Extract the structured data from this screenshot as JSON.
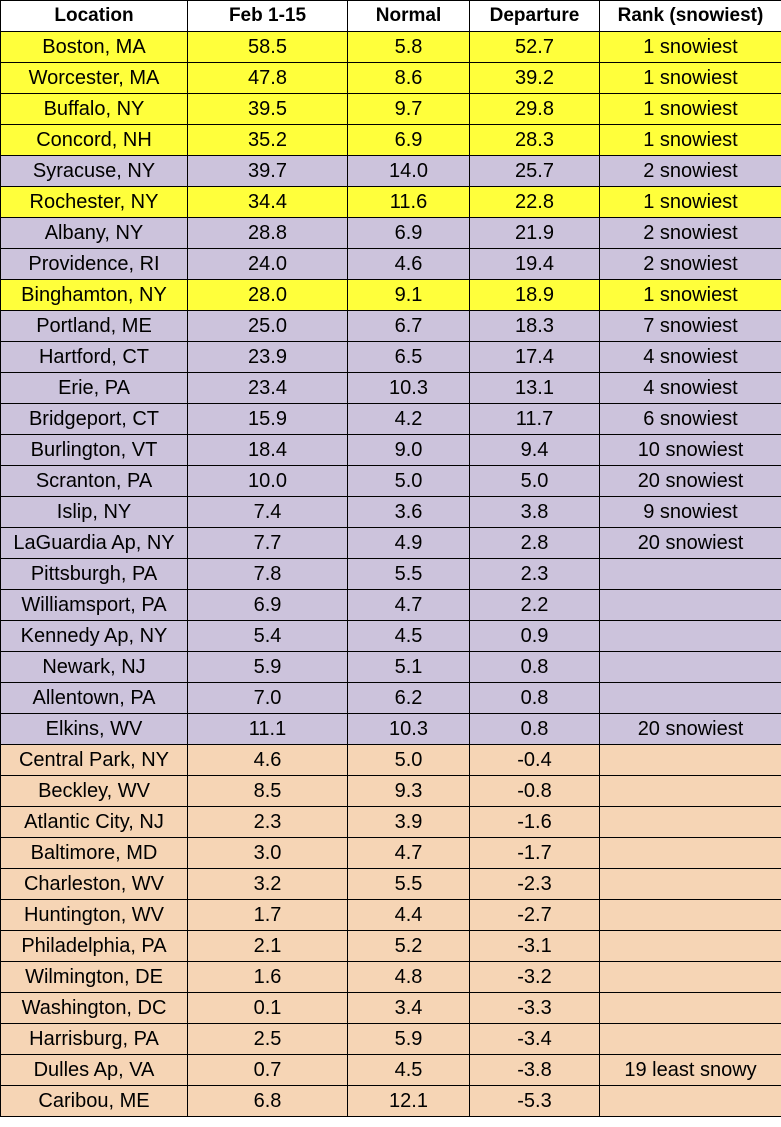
{
  "headers": [
    "Location",
    "Feb 1-15",
    "Normal",
    "Departure",
    "Rank (snowiest)"
  ],
  "colors": {
    "rank1": "#ffff3b",
    "above_normal": "#ccc3dc",
    "below_normal": "#f6d5b5",
    "header": "#ffffff"
  },
  "rows": [
    {
      "loc": "Boston, MA",
      "feb": "58.5",
      "normal": "5.8",
      "dep": "52.7",
      "rank": "1 snowiest",
      "cat": "top"
    },
    {
      "loc": "Worcester, MA",
      "feb": "47.8",
      "normal": "8.6",
      "dep": "39.2",
      "rank": "1 snowiest",
      "cat": "top"
    },
    {
      "loc": "Buffalo, NY",
      "feb": "39.5",
      "normal": "9.7",
      "dep": "29.8",
      "rank": "1 snowiest",
      "cat": "top"
    },
    {
      "loc": "Concord, NH",
      "feb": "35.2",
      "normal": "6.9",
      "dep": "28.3",
      "rank": "1 snowiest",
      "cat": "top"
    },
    {
      "loc": "Syracuse, NY",
      "feb": "39.7",
      "normal": "14.0",
      "dep": "25.7",
      "rank": "2 snowiest",
      "cat": "above"
    },
    {
      "loc": "Rochester, NY",
      "feb": "34.4",
      "normal": "11.6",
      "dep": "22.8",
      "rank": "1 snowiest",
      "cat": "top"
    },
    {
      "loc": "Albany, NY",
      "feb": "28.8",
      "normal": "6.9",
      "dep": "21.9",
      "rank": "2 snowiest",
      "cat": "above"
    },
    {
      "loc": "Providence, RI",
      "feb": "24.0",
      "normal": "4.6",
      "dep": "19.4",
      "rank": "2 snowiest",
      "cat": "above"
    },
    {
      "loc": "Binghamton, NY",
      "feb": "28.0",
      "normal": "9.1",
      "dep": "18.9",
      "rank": "1 snowiest",
      "cat": "top"
    },
    {
      "loc": "Portland, ME",
      "feb": "25.0",
      "normal": "6.7",
      "dep": "18.3",
      "rank": "7 snowiest",
      "cat": "above"
    },
    {
      "loc": "Hartford, CT",
      "feb": "23.9",
      "normal": "6.5",
      "dep": "17.4",
      "rank": "4 snowiest",
      "cat": "above"
    },
    {
      "loc": "Erie, PA",
      "feb": "23.4",
      "normal": "10.3",
      "dep": "13.1",
      "rank": "4 snowiest",
      "cat": "above"
    },
    {
      "loc": "Bridgeport, CT",
      "feb": "15.9",
      "normal": "4.2",
      "dep": "11.7",
      "rank": "6 snowiest",
      "cat": "above"
    },
    {
      "loc": "Burlington, VT",
      "feb": "18.4",
      "normal": "9.0",
      "dep": "9.4",
      "rank": "10 snowiest",
      "cat": "above"
    },
    {
      "loc": "Scranton, PA",
      "feb": "10.0",
      "normal": "5.0",
      "dep": "5.0",
      "rank": "20 snowiest",
      "cat": "above"
    },
    {
      "loc": "Islip, NY",
      "feb": "7.4",
      "normal": "3.6",
      "dep": "3.8",
      "rank": "9 snowiest",
      "cat": "above"
    },
    {
      "loc": "LaGuardia Ap, NY",
      "feb": "7.7",
      "normal": "4.9",
      "dep": "2.8",
      "rank": "20 snowiest",
      "cat": "above"
    },
    {
      "loc": "Pittsburgh, PA",
      "feb": "7.8",
      "normal": "5.5",
      "dep": "2.3",
      "rank": "",
      "cat": "above"
    },
    {
      "loc": "Williamsport, PA",
      "feb": "6.9",
      "normal": "4.7",
      "dep": "2.2",
      "rank": "",
      "cat": "above"
    },
    {
      "loc": "Kennedy Ap, NY",
      "feb": "5.4",
      "normal": "4.5",
      "dep": "0.9",
      "rank": "",
      "cat": "above"
    },
    {
      "loc": "Newark, NJ",
      "feb": "5.9",
      "normal": "5.1",
      "dep": "0.8",
      "rank": "",
      "cat": "above"
    },
    {
      "loc": "Allentown, PA",
      "feb": "7.0",
      "normal": "6.2",
      "dep": "0.8",
      "rank": "",
      "cat": "above"
    },
    {
      "loc": "Elkins, WV",
      "feb": "11.1",
      "normal": "10.3",
      "dep": "0.8",
      "rank": "20 snowiest",
      "cat": "above"
    },
    {
      "loc": "Central Park, NY",
      "feb": "4.6",
      "normal": "5.0",
      "dep": "-0.4",
      "rank": "",
      "cat": "below"
    },
    {
      "loc": "Beckley, WV",
      "feb": "8.5",
      "normal": "9.3",
      "dep": "-0.8",
      "rank": "",
      "cat": "below"
    },
    {
      "loc": "Atlantic City, NJ",
      "feb": "2.3",
      "normal": "3.9",
      "dep": "-1.6",
      "rank": "",
      "cat": "below"
    },
    {
      "loc": "Baltimore, MD",
      "feb": "3.0",
      "normal": "4.7",
      "dep": "-1.7",
      "rank": "",
      "cat": "below"
    },
    {
      "loc": "Charleston, WV",
      "feb": "3.2",
      "normal": "5.5",
      "dep": "-2.3",
      "rank": "",
      "cat": "below"
    },
    {
      "loc": "Huntington, WV",
      "feb": "1.7",
      "normal": "4.4",
      "dep": "-2.7",
      "rank": "",
      "cat": "below"
    },
    {
      "loc": "Philadelphia, PA",
      "feb": "2.1",
      "normal": "5.2",
      "dep": "-3.1",
      "rank": "",
      "cat": "below"
    },
    {
      "loc": "Wilmington, DE",
      "feb": "1.6",
      "normal": "4.8",
      "dep": "-3.2",
      "rank": "",
      "cat": "below"
    },
    {
      "loc": "Washington, DC",
      "feb": "0.1",
      "normal": "3.4",
      "dep": "-3.3",
      "rank": "",
      "cat": "below"
    },
    {
      "loc": "Harrisburg, PA",
      "feb": "2.5",
      "normal": "5.9",
      "dep": "-3.4",
      "rank": "",
      "cat": "below"
    },
    {
      "loc": "Dulles Ap, VA",
      "feb": "0.7",
      "normal": "4.5",
      "dep": "-3.8",
      "rank": "19 least snowy",
      "cat": "below"
    },
    {
      "loc": "Caribou, ME",
      "feb": "6.8",
      "normal": "12.1",
      "dep": "-5.3",
      "rank": "",
      "cat": "below"
    }
  ]
}
